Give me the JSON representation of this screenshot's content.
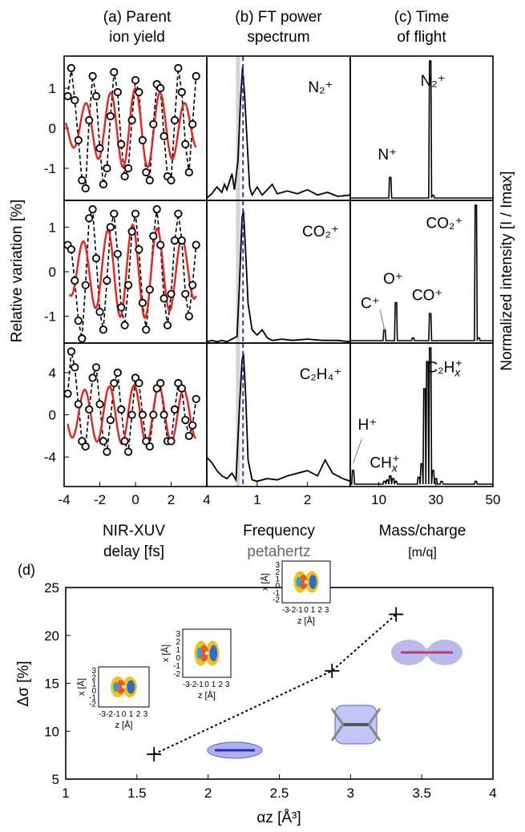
{
  "chart_data": [
    {
      "panel": "a",
      "type": "line",
      "header": [
        "(a) Parent",
        "ion yield"
      ],
      "xlabel": [
        "NIR-XUV",
        "delay [fs]"
      ],
      "ylabel": "Relative variation [%]",
      "xlim": [
        -4,
        4
      ],
      "x_ticks": [
        "-4",
        "-2",
        "0",
        "2",
        "4"
      ],
      "rows": [
        {
          "ylim": [
            -1.8,
            1.8
          ],
          "y_ticks": [
            "1",
            "0",
            "-1"
          ],
          "measured": [
            [
              -3.8,
              0.8
            ],
            [
              -3.6,
              1.5
            ],
            [
              -3.4,
              0.7
            ],
            [
              -3.2,
              -0.3
            ],
            [
              -3.0,
              -1.3
            ],
            [
              -2.8,
              -1.5
            ],
            [
              -2.6,
              0.2
            ],
            [
              -2.4,
              1.3
            ],
            [
              -2.2,
              0.8
            ],
            [
              -2.0,
              -0.5
            ],
            [
              -1.8,
              -1.4
            ],
            [
              -1.6,
              -1.0
            ],
            [
              -1.4,
              0.3
            ],
            [
              -1.2,
              1.4
            ],
            [
              -1.0,
              0.9
            ],
            [
              -0.8,
              -0.4
            ],
            [
              -0.6,
              -1.2
            ],
            [
              -0.4,
              -1.0
            ],
            [
              -0.2,
              0.2
            ],
            [
              0.0,
              1.2
            ],
            [
              0.2,
              0.9
            ],
            [
              0.4,
              -0.3
            ],
            [
              0.6,
              -1.1
            ],
            [
              0.8,
              -1.3
            ],
            [
              1.0,
              0.1
            ],
            [
              1.2,
              1.1
            ],
            [
              1.4,
              1.0
            ],
            [
              1.6,
              -0.2
            ],
            [
              1.8,
              -1.2
            ],
            [
              2.0,
              -1.3
            ],
            [
              2.2,
              0.2
            ],
            [
              2.4,
              1.5
            ],
            [
              2.6,
              0.9
            ],
            [
              2.8,
              -0.4
            ],
            [
              3.0,
              -1.1
            ],
            [
              3.2,
              0.1
            ],
            [
              3.4,
              1.3
            ]
          ],
          "fit": {
            "amp": 1.0,
            "decay": 0.06,
            "center": 0.0,
            "freq": 0.72,
            "phase": 1.6,
            "xmin": -3.9,
            "xmax": 3.4
          }
        },
        {
          "ylim": [
            -1.6,
            1.6
          ],
          "y_ticks": [
            "1",
            "0",
            "-1"
          ],
          "measured": [
            [
              -3.8,
              0.6
            ],
            [
              -3.6,
              0.5
            ],
            [
              -3.4,
              -0.2
            ],
            [
              -3.2,
              -1.1
            ],
            [
              -3.0,
              -1.5
            ],
            [
              -2.8,
              -0.3
            ],
            [
              -2.6,
              1.2
            ],
            [
              -2.4,
              1.4
            ],
            [
              -2.2,
              0.3
            ],
            [
              -2.0,
              -0.9
            ],
            [
              -1.8,
              -1.3
            ],
            [
              -1.6,
              -0.2
            ],
            [
              -1.4,
              1.0
            ],
            [
              -1.2,
              1.3
            ],
            [
              -1.0,
              0.4
            ],
            [
              -0.8,
              -0.8
            ],
            [
              -0.6,
              -1.2
            ],
            [
              -0.4,
              -0.3
            ],
            [
              -0.2,
              0.9
            ],
            [
              0.0,
              1.3
            ],
            [
              0.2,
              0.5
            ],
            [
              0.4,
              -0.7
            ],
            [
              0.6,
              -1.3
            ],
            [
              0.8,
              -0.4
            ],
            [
              1.0,
              0.8
            ],
            [
              1.2,
              1.4
            ],
            [
              1.4,
              0.6
            ],
            [
              1.6,
              -0.6
            ],
            [
              1.8,
              -1.2
            ],
            [
              2.0,
              -0.5
            ],
            [
              2.2,
              0.7
            ],
            [
              2.4,
              1.3
            ],
            [
              2.6,
              0.7
            ],
            [
              2.8,
              -0.5
            ],
            [
              3.0,
              -1.0
            ],
            [
              3.2,
              -0.3
            ],
            [
              3.4,
              0.6
            ]
          ],
          "fit": {
            "amp": 1.05,
            "decay": 0.05,
            "center": 0.0,
            "freq": 0.72,
            "phase": 2.3,
            "xmin": -3.7,
            "xmax": 3.4
          }
        },
        {
          "ylim": [
            -6.8,
            6.8
          ],
          "y_ticks": [
            "4",
            "0",
            "-4"
          ],
          "measured": [
            [
              -3.8,
              2.0
            ],
            [
              -3.6,
              6.0
            ],
            [
              -3.4,
              4.5
            ],
            [
              -3.2,
              1.0
            ],
            [
              -3.0,
              -2.5
            ],
            [
              -2.8,
              -3.0
            ],
            [
              -2.6,
              0.5
            ],
            [
              -2.4,
              3.5
            ],
            [
              -2.2,
              4.5
            ],
            [
              -2.0,
              1.0
            ],
            [
              -1.8,
              -2.5
            ],
            [
              -1.6,
              -3.5
            ],
            [
              -1.4,
              -0.5
            ],
            [
              -1.2,
              3.0
            ],
            [
              -1.0,
              4.0
            ],
            [
              -0.8,
              0.5
            ],
            [
              -0.6,
              -2.5
            ],
            [
              -0.4,
              -3.5
            ],
            [
              -0.2,
              0.0
            ],
            [
              0.0,
              3.5
            ],
            [
              0.2,
              3.0
            ],
            [
              0.4,
              0.0
            ],
            [
              0.6,
              -2.5
            ],
            [
              0.8,
              -3.0
            ],
            [
              1.0,
              0.0
            ],
            [
              1.2,
              2.5
            ],
            [
              1.4,
              3.0
            ],
            [
              1.6,
              0.0
            ],
            [
              1.8,
              -2.5
            ],
            [
              2.0,
              -2.5
            ],
            [
              2.2,
              0.5
            ],
            [
              2.4,
              3.0
            ],
            [
              2.6,
              2.5
            ],
            [
              2.8,
              -0.5
            ],
            [
              3.0,
              -2.0
            ],
            [
              3.2,
              -1.0
            ],
            [
              3.4,
              1.5
            ]
          ],
          "fit": {
            "amp": 2.8,
            "decay": 0.02,
            "center": 0.0,
            "freq": 0.72,
            "phase": 1.9,
            "xmin": -3.8,
            "xmax": 3.4
          }
        }
      ]
    },
    {
      "panel": "b",
      "type": "line",
      "header": [
        "(b) FT power",
        "spectrum"
      ],
      "xlabel": "Frequency",
      "xlabel_units": "petahertz",
      "xlim": [
        0,
        2.85
      ],
      "x_ticks": [
        "1",
        "2"
      ],
      "band": [
        0.58,
        0.66
      ],
      "marker_frequency": 0.72,
      "rows": [
        {
          "label": "N₂⁺",
          "spectrum": [
            [
              0.0,
              0.02
            ],
            [
              0.1,
              0.05
            ],
            [
              0.2,
              0.1
            ],
            [
              0.3,
              0.06
            ],
            [
              0.35,
              0.12
            ],
            [
              0.4,
              0.08
            ],
            [
              0.5,
              0.2
            ],
            [
              0.55,
              0.08
            ],
            [
              0.62,
              0.3
            ],
            [
              0.67,
              0.75
            ],
            [
              0.71,
              1.0
            ],
            [
              0.75,
              0.8
            ],
            [
              0.8,
              0.45
            ],
            [
              0.85,
              0.1
            ],
            [
              0.9,
              0.04
            ],
            [
              1.0,
              0.1
            ],
            [
              1.1,
              0.04
            ],
            [
              1.2,
              0.08
            ],
            [
              1.3,
              0.12
            ],
            [
              1.4,
              0.05
            ],
            [
              1.6,
              0.07
            ],
            [
              1.8,
              0.05
            ],
            [
              2.0,
              0.08
            ],
            [
              2.2,
              0.04
            ],
            [
              2.4,
              0.06
            ],
            [
              2.6,
              0.03
            ],
            [
              2.85,
              0.04
            ]
          ]
        },
        {
          "label": "CO₂⁺",
          "spectrum": [
            [
              0.0,
              0.01
            ],
            [
              0.1,
              0.02
            ],
            [
              0.2,
              0.01
            ],
            [
              0.3,
              0.02
            ],
            [
              0.4,
              0.01
            ],
            [
              0.5,
              0.03
            ],
            [
              0.6,
              0.05
            ],
            [
              0.65,
              0.45
            ],
            [
              0.7,
              0.95
            ],
            [
              0.73,
              1.0
            ],
            [
              0.77,
              0.7
            ],
            [
              0.82,
              0.3
            ],
            [
              0.9,
              0.1
            ],
            [
              1.0,
              0.06
            ],
            [
              1.1,
              0.1
            ],
            [
              1.2,
              0.04
            ],
            [
              1.3,
              0.02
            ],
            [
              1.5,
              0.03
            ],
            [
              1.7,
              0.02
            ],
            [
              2.0,
              0.03
            ],
            [
              2.3,
              0.02
            ],
            [
              2.6,
              0.02
            ],
            [
              2.85,
              0.01
            ]
          ]
        },
        {
          "label": "C₂H₄⁺",
          "spectrum": [
            [
              0.0,
              0.22
            ],
            [
              0.1,
              0.18
            ],
            [
              0.2,
              0.12
            ],
            [
              0.3,
              0.08
            ],
            [
              0.4,
              0.06
            ],
            [
              0.5,
              0.1
            ],
            [
              0.58,
              0.05
            ],
            [
              0.65,
              0.6
            ],
            [
              0.7,
              0.95
            ],
            [
              0.73,
              1.0
            ],
            [
              0.77,
              0.7
            ],
            [
              0.82,
              0.2
            ],
            [
              0.9,
              0.05
            ],
            [
              1.0,
              0.04
            ],
            [
              1.2,
              0.06
            ],
            [
              1.4,
              0.05
            ],
            [
              1.6,
              0.08
            ],
            [
              1.8,
              0.1
            ],
            [
              2.0,
              0.12
            ],
            [
              2.2,
              0.08
            ],
            [
              2.35,
              0.2
            ],
            [
              2.5,
              0.1
            ],
            [
              2.7,
              0.06
            ],
            [
              2.85,
              0.04
            ]
          ]
        }
      ]
    },
    {
      "panel": "c",
      "type": "line",
      "header": [
        "(c) Time",
        "of flight"
      ],
      "xlabel": "Mass/charge",
      "xlabel_units": "[m/q]",
      "ylabel": "Normalized intensity [I / Imax]",
      "xlim": [
        0,
        50
      ],
      "x_ticks": [
        "10",
        "30",
        "50"
      ],
      "rows": [
        {
          "peaks": [
            [
              14,
              0.15
            ],
            [
              28,
              1.0
            ],
            [
              29,
              0.02
            ]
          ],
          "labels": [
            {
              "text": "N₂⁺",
              "x": 29,
              "y": 0.82
            },
            {
              "text": "N⁺",
              "x": 13,
              "y": 0.28
            }
          ]
        },
        {
          "peaks": [
            [
              12,
              0.08
            ],
            [
              16,
              0.28
            ],
            [
              22,
              0.02
            ],
            [
              28,
              0.2
            ],
            [
              44,
              1.0
            ],
            [
              45,
              0.02
            ]
          ],
          "labels": [
            {
              "text": "CO₂⁺",
              "x": 33,
              "y": 0.83
            },
            {
              "text": "O⁺",
              "x": 15,
              "y": 0.42
            },
            {
              "text": "CO⁺",
              "x": 27,
              "y": 0.3
            },
            {
              "text": "C⁺",
              "x": 7,
              "y": 0.24
            }
          ]
        },
        {
          "peaks": [
            [
              1,
              0.1
            ],
            [
              12,
              0.02
            ],
            [
              13,
              0.03
            ],
            [
              14,
              0.06
            ],
            [
              15,
              0.04
            ],
            [
              16,
              0.02
            ],
            [
              24,
              0.05
            ],
            [
              25,
              0.15
            ],
            [
              26,
              0.7
            ],
            [
              27,
              0.9
            ],
            [
              28,
              1.0
            ],
            [
              29,
              0.1
            ],
            [
              30,
              0.04
            ],
            [
              32,
              0.02
            ],
            [
              44,
              0.02
            ]
          ],
          "labels": [
            {
              "text": "C₂H",
              "sub": "x",
              "sup": "+",
              "x": 33,
              "y": 0.82
            },
            {
              "text": "H⁺",
              "x": 6,
              "y": 0.4
            },
            {
              "text": "CH",
              "sub": "x",
              "sup": "+",
              "x": 12,
              "y": 0.12
            }
          ]
        }
      ]
    },
    {
      "panel": "d",
      "type": "scatter",
      "panel_label": "(d)",
      "xlabel": "αz [Å³]",
      "ylabel": "Δσ [%]",
      "xlim": [
        1,
        4
      ],
      "ylim": [
        5,
        25
      ],
      "x_ticks": [
        "1",
        "1.5",
        "2",
        "2.5",
        "3",
        "3.5",
        "4"
      ],
      "y_ticks": [
        "5",
        "10",
        "15",
        "20",
        "25"
      ],
      "points": [
        [
          1.62,
          7.6
        ],
        [
          2.87,
          16.3
        ],
        [
          3.32,
          22.2
        ]
      ],
      "inset_axis_labels": {
        "z": "z [Å]",
        "x": "x [Å]"
      },
      "inset_ticks": [
        "-3",
        "-2",
        "-1",
        "0",
        "1",
        "2",
        "3"
      ]
    }
  ]
}
